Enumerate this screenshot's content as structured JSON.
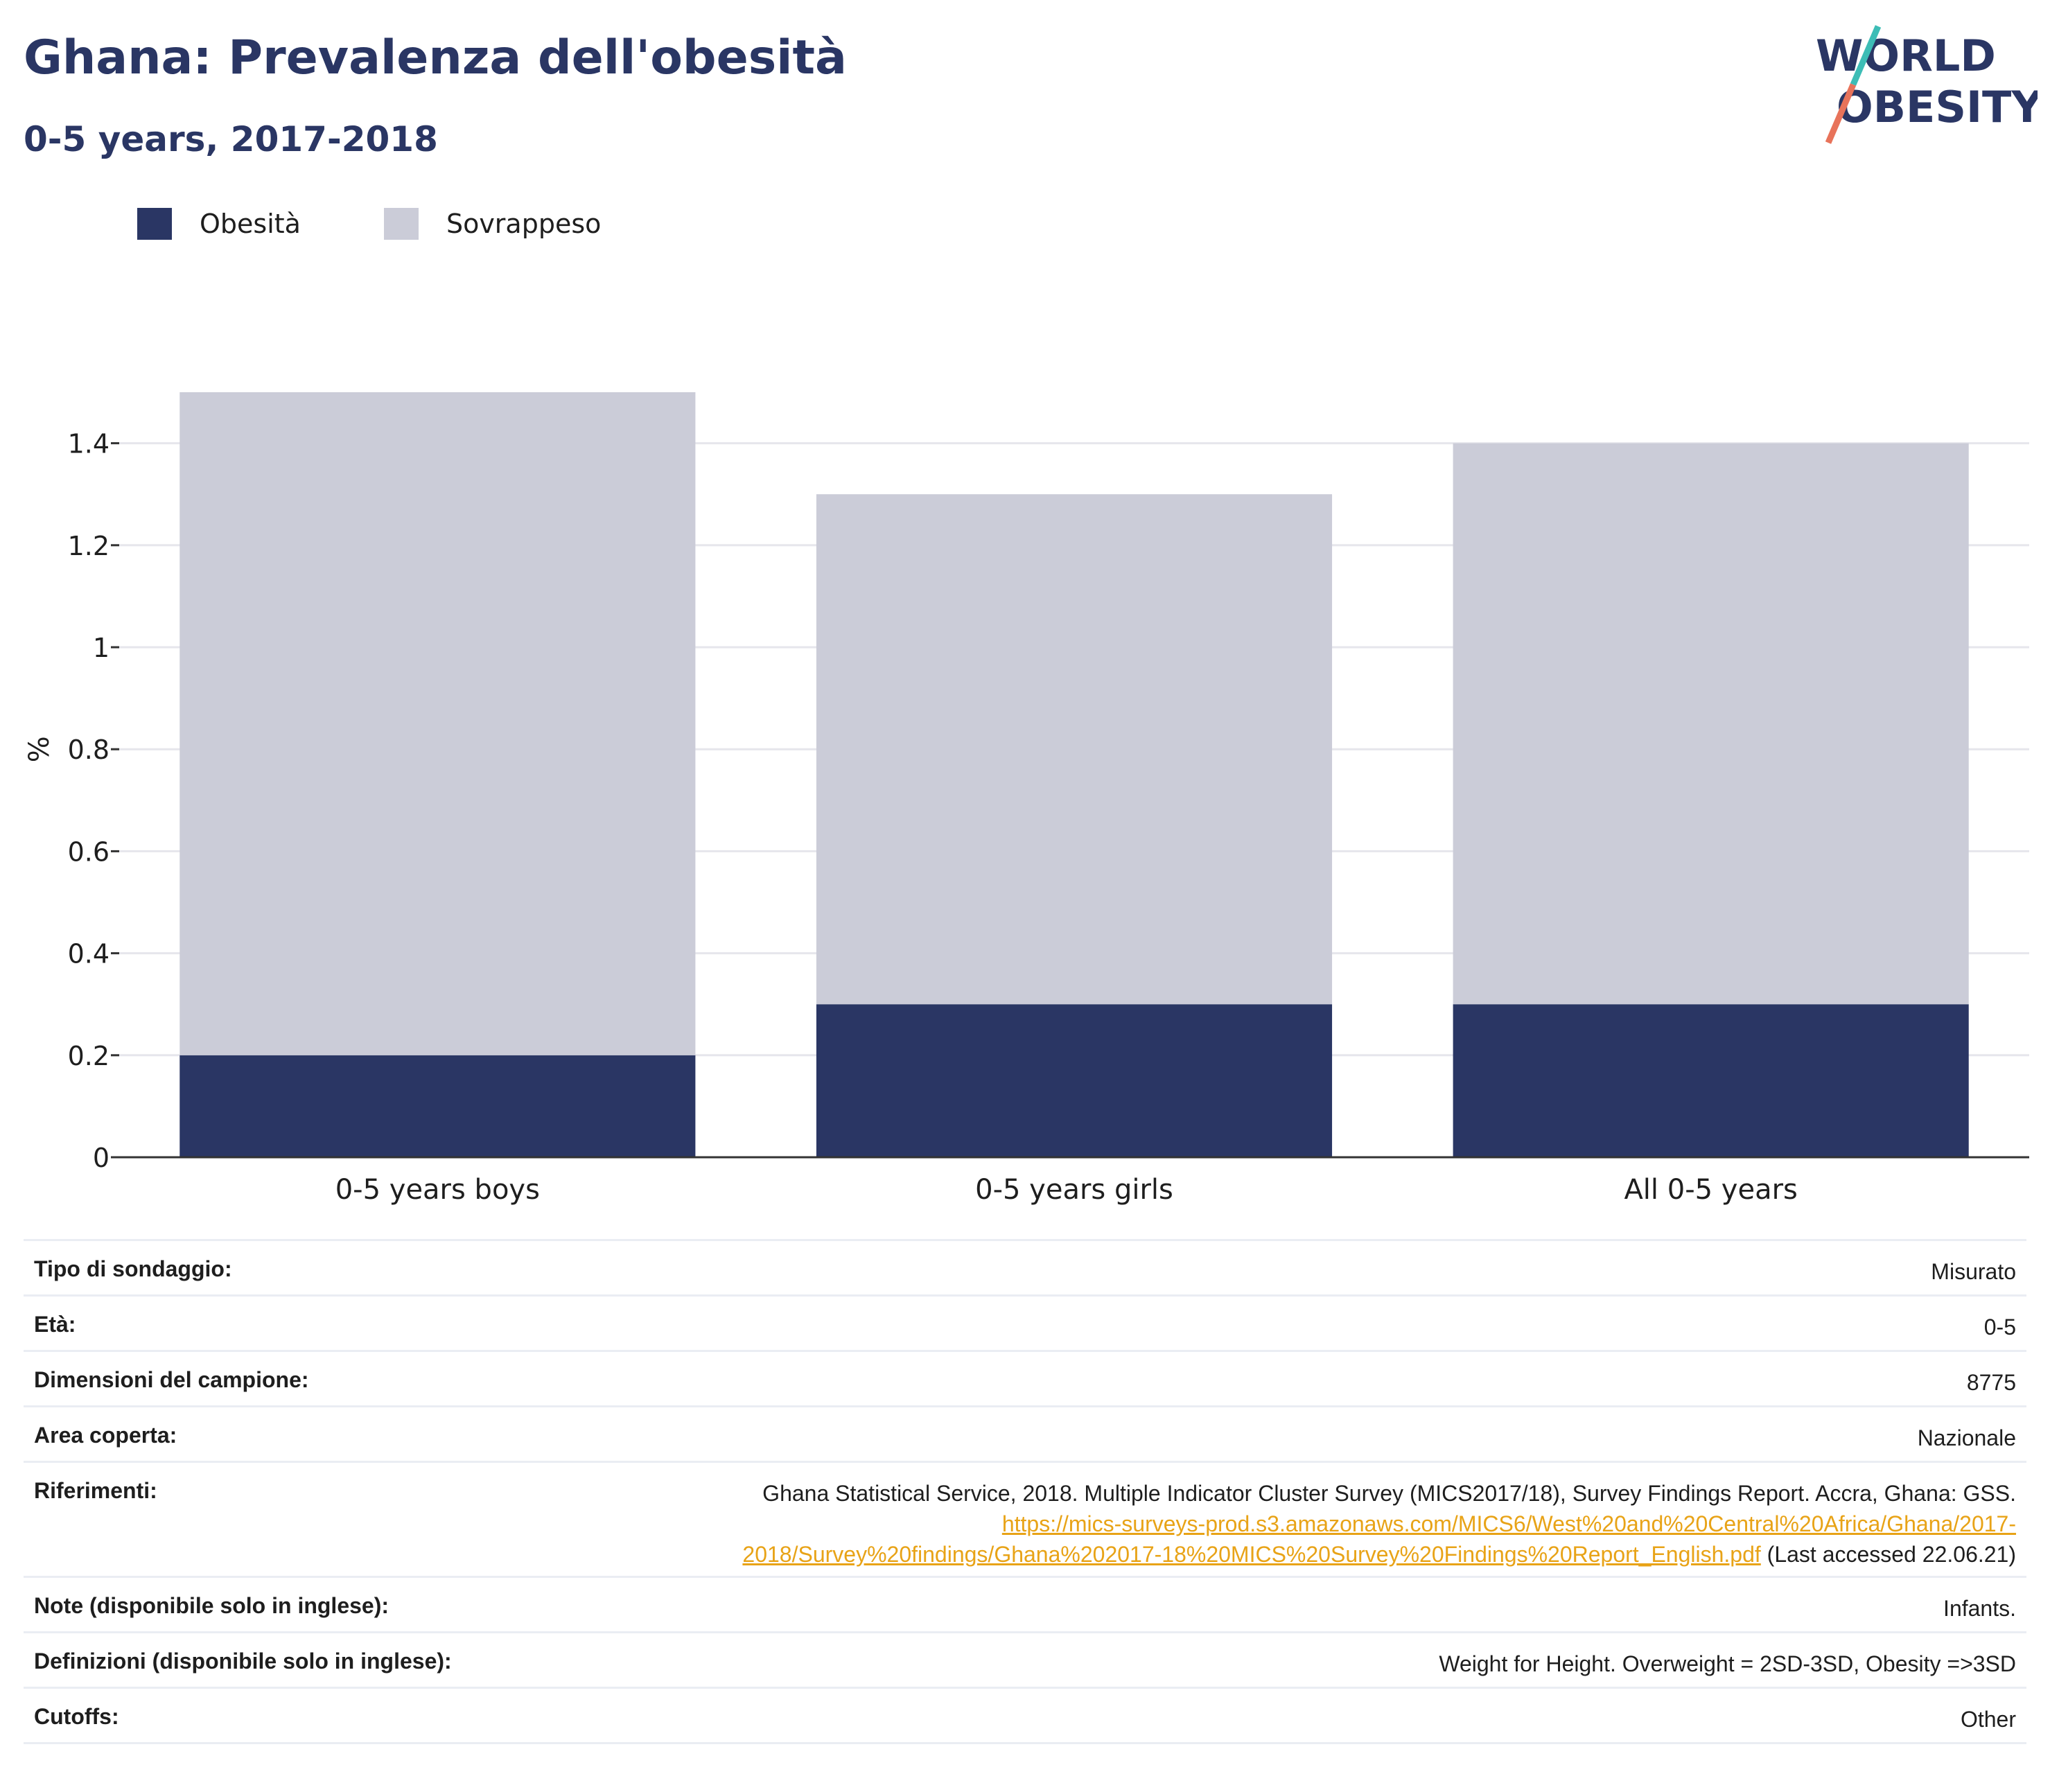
{
  "header": {
    "title": "Ghana: Prevalenza dell'obesità",
    "subtitle": "0-5 years, 2017-2018"
  },
  "logo": {
    "line1": "WORLD",
    "line2": "OBESITY"
  },
  "colors": {
    "obesita": "#2a3664",
    "sovrappeso": "#cbccd8",
    "accent_teal": "#3dbdb6",
    "accent_coral": "#e8735a",
    "link": "#e8a317"
  },
  "legend": [
    {
      "label": "Obesità",
      "color": "#2a3664"
    },
    {
      "label": "Sovrappeso",
      "color": "#cbccd8"
    }
  ],
  "chart_data": {
    "type": "bar",
    "stacked": true,
    "categories": [
      "0-5 years boys",
      "0-5 years girls",
      "All 0-5 years"
    ],
    "series": [
      {
        "name": "Obesità",
        "values": [
          0.2,
          0.3,
          0.3
        ]
      },
      {
        "name": "Sovrappeso",
        "values": [
          1.3,
          1.0,
          1.1
        ]
      }
    ],
    "ylabel": "%",
    "ylim": [
      0,
      1.5
    ],
    "yticks": [
      "0",
      "0.2",
      "0.4",
      "0.6",
      "0.8",
      "1",
      "1.2",
      "1.4"
    ],
    "grid": true,
    "legend_position": "top-left"
  },
  "info": {
    "rows": [
      {
        "key": "Tipo di sondaggio:",
        "value": "Misurato"
      },
      {
        "key": "Età:",
        "value": "0-5"
      },
      {
        "key": "Dimensioni del campione:",
        "value": "8775"
      },
      {
        "key": "Area coperta:",
        "value": "Nazionale"
      },
      {
        "key": "Riferimenti:",
        "value": "Ghana Statistical Service, 2018. Multiple Indicator Cluster Survey (MICS2017/18), Survey Findings Report. Accra, Ghana: GSS.",
        "link_line1": "https://mics-surveys-prod.s3.amazonaws.com/MICS6/West%20and%20Central%20Africa/Ghana/2017-",
        "link_line2": "2018/Survey%20findings/Ghana%202017-18%20MICS%20Survey%20Findings%20Report_English.pdf",
        "suffix": "(Last accessed 22.06.21)"
      },
      {
        "key": "Note (disponibile solo in inglese):",
        "value": "Infants."
      },
      {
        "key": "Definizioni (disponibile solo in inglese):",
        "value": "Weight for Height. Overweight = 2SD-3SD, Obesity =>3SD"
      },
      {
        "key": "Cutoffs:",
        "value": "Other"
      }
    ]
  }
}
